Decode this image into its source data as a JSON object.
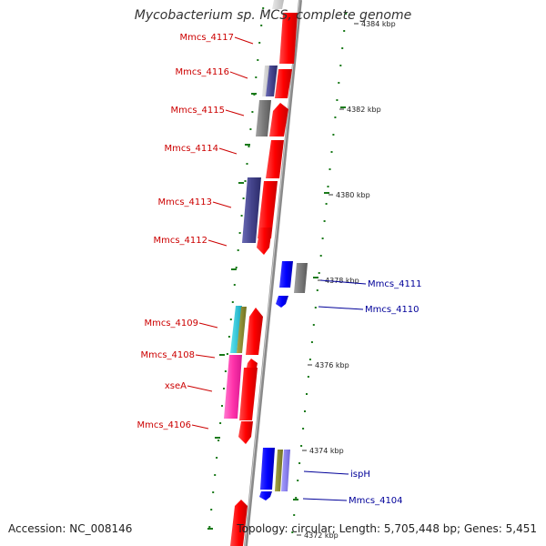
{
  "title": "Mycobacterium sp. MCS, complete genome",
  "footer": {
    "accession": "Accession: NC_008146",
    "topology": "Topology: circular; Length: 5,705,448 bp; Genes: 5,451"
  },
  "ticks": [
    {
      "label": "4384 kbp"
    },
    {
      "label": "4382 kbp"
    },
    {
      "label": "4380 kbp"
    },
    {
      "label": "4378 kbp"
    },
    {
      "label": "4376 kbp"
    },
    {
      "label": "4374 kbp"
    },
    {
      "label": "4372 kbp"
    }
  ],
  "left_labels": [
    "Mmcs_4117",
    "Mmcs_4116",
    "Mmcs_4115",
    "Mmcs_4114",
    "Mmcs_4113",
    "Mmcs_4112",
    "Mmcs_4109",
    "Mmcs_4108",
    "xseA",
    "Mmcs_4106"
  ],
  "right_labels": [
    "Mmcs_4111",
    "Mmcs_4110",
    "ispH",
    "Mmcs_4104"
  ],
  "colors": {
    "forward_label": "#cc0000",
    "reverse_label": "#000099",
    "forward_gene": "#ff0000",
    "reverse_gene": "#0000ff",
    "backbone": "#888888",
    "dots": "#1a7a1a"
  }
}
